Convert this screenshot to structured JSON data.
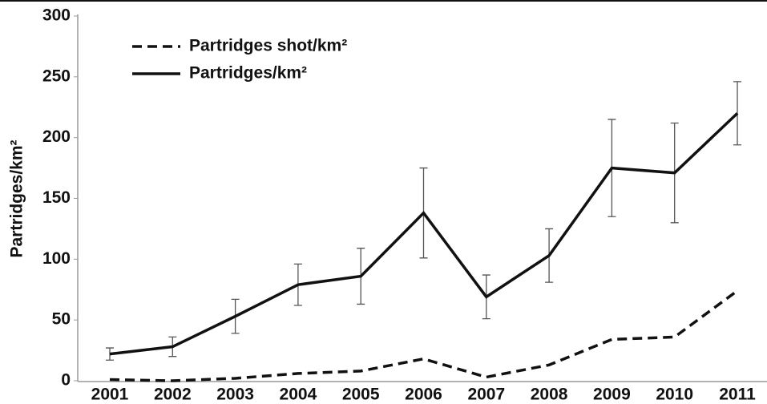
{
  "chart_data": {
    "type": "line",
    "y_label": "Partridges/km²",
    "categories": [
      "2001",
      "2002",
      "2003",
      "2004",
      "2005",
      "2006",
      "2007",
      "2008",
      "2009",
      "2010",
      "2011"
    ],
    "series": [
      {
        "name": "Partridges shot/km²",
        "color": "#111111",
        "dash": true,
        "values": [
          1,
          0,
          2,
          6,
          8,
          18,
          3,
          13,
          34,
          36,
          74
        ]
      },
      {
        "name": "Partridges/km²",
        "color": "#111111",
        "dash": false,
        "values": [
          22,
          28,
          53,
          79,
          86,
          138,
          69,
          103,
          175,
          171,
          220
        ],
        "errors": [
          5,
          8,
          14,
          17,
          23,
          37,
          18,
          22,
          40,
          41,
          26
        ]
      }
    ],
    "ylim": [
      0,
      300
    ],
    "yticks": [
      0,
      50,
      100,
      150,
      200,
      250,
      300
    ]
  }
}
